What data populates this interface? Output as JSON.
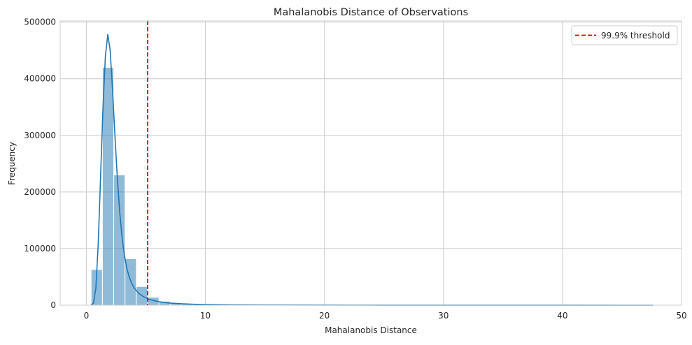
{
  "chart_data": {
    "type": "bar",
    "title": "Mahalanobis Distance of Observations",
    "xlabel": "Mahalanobis Distance",
    "ylabel": "Frequency",
    "xlim": [
      -2.2,
      50
    ],
    "ylim": [
      0,
      502000
    ],
    "x_ticks": [
      0,
      10,
      20,
      30,
      40,
      50
    ],
    "x_tick_labels": [
      "0",
      "10",
      "20",
      "30",
      "40",
      "50"
    ],
    "y_ticks": [
      0,
      100000,
      200000,
      300000,
      400000,
      500000
    ],
    "y_tick_labels": [
      "0",
      "100000",
      "200000",
      "300000",
      "400000",
      "500000"
    ],
    "grid": true,
    "legend_position": "top-right",
    "histogram": {
      "bin_width": 0.95,
      "bin_starts": [
        0.4,
        1.35,
        2.3,
        3.25,
        4.2,
        5.15,
        6.1,
        7.05,
        8.0,
        8.95,
        9.9,
        10.85,
        11.8,
        12.75,
        13.7,
        14.65,
        15.6,
        16.55,
        17.5,
        18.45,
        19.4,
        20.35,
        21.3,
        22.25,
        23.2,
        24.15,
        25.1,
        26.05,
        27.0,
        27.95,
        28.9,
        29.85,
        30.8,
        31.75,
        32.7,
        33.65,
        34.6,
        35.55,
        36.5,
        37.45,
        38.4,
        39.35,
        40.3,
        41.25,
        42.2,
        43.15,
        44.1,
        45.05,
        46.0,
        46.95
      ],
      "counts": [
        63000,
        420000,
        230000,
        82000,
        33000,
        14000,
        7000,
        4500,
        3000,
        2000,
        1400,
        1000,
        800,
        600,
        500,
        400,
        350,
        300,
        250,
        220,
        200,
        180,
        160,
        140,
        120,
        110,
        100,
        90,
        80,
        75,
        70,
        65,
        60,
        55,
        50,
        45,
        40,
        38,
        35,
        32,
        30,
        28,
        25,
        22,
        20,
        18,
        16,
        14,
        12,
        10
      ],
      "color": "#1f77b4"
    },
    "kde": {
      "x": [
        0.4,
        0.6,
        0.8,
        1.0,
        1.2,
        1.4,
        1.6,
        1.8,
        2.0,
        2.2,
        2.4,
        2.6,
        2.8,
        3.0,
        3.2,
        3.4,
        3.6,
        3.8,
        4.0,
        4.4,
        4.8,
        5.2,
        5.6,
        6.0,
        6.5,
        7.0,
        8.0,
        9.0,
        10.0,
        12.0,
        15.0,
        20.0,
        25.0,
        30.0,
        35.0,
        40.0,
        45.0,
        47.6
      ],
      "y": [
        0,
        4000,
        30000,
        110000,
        230000,
        350000,
        440000,
        478000,
        450000,
        380000,
        300000,
        225000,
        165000,
        120000,
        88000,
        65000,
        50000,
        39000,
        31000,
        21000,
        15000,
        11000,
        8500,
        6500,
        5000,
        3800,
        2500,
        1700,
        1200,
        700,
        400,
        200,
        120,
        80,
        50,
        30,
        15,
        10
      ],
      "color": "#1f77b4"
    },
    "threshold": {
      "x": 5.15,
      "label": "99.9% threshold",
      "color": "#e00000"
    }
  }
}
